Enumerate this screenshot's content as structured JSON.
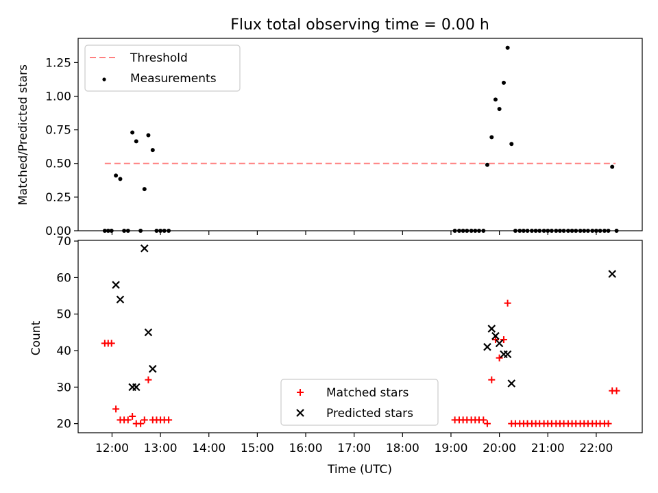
{
  "chart_data": [
    {
      "type": "scatter",
      "title": "Flux total observing time = 0.00 h",
      "xlabel": "",
      "ylabel": "Matched/Predicted stars",
      "xlim": [
        11.3,
        22.95
      ],
      "ylim": [
        0,
        1.43
      ],
      "yticks": [
        0.0,
        0.25,
        0.5,
        0.75,
        1.0,
        1.25
      ],
      "ytick_labels": [
        "0.00",
        "0.25",
        "0.50",
        "0.75",
        "1.00",
        "1.25"
      ],
      "legend_position": "upper-left",
      "threshold": {
        "name": "Threshold",
        "y": 0.5,
        "x": [
          11.85,
          22.4
        ],
        "color": "#ff8080",
        "style": "dashed"
      },
      "series": [
        {
          "name": "Measurements",
          "color": "#000000",
          "marker": "dot",
          "points": [
            [
              11.85,
              0.0
            ],
            [
              11.92,
              0.0
            ],
            [
              11.99,
              0.0
            ],
            [
              12.08,
              0.41
            ],
            [
              12.17,
              0.385
            ],
            [
              12.25,
              0.0
            ],
            [
              12.33,
              0.0
            ],
            [
              12.42,
              0.73
            ],
            [
              12.5,
              0.665
            ],
            [
              12.59,
              0.0
            ],
            [
              12.67,
              0.31
            ],
            [
              12.75,
              0.71
            ],
            [
              12.84,
              0.6
            ],
            [
              12.92,
              0.0
            ],
            [
              13.0,
              0.0
            ],
            [
              13.08,
              0.0
            ],
            [
              13.17,
              0.0
            ],
            [
              19.08,
              0.0
            ],
            [
              19.17,
              0.0
            ],
            [
              19.25,
              0.0
            ],
            [
              19.33,
              0.0
            ],
            [
              19.42,
              0.0
            ],
            [
              19.5,
              0.0
            ],
            [
              19.58,
              0.0
            ],
            [
              19.67,
              0.0
            ],
            [
              19.75,
              0.49
            ],
            [
              19.84,
              0.695
            ],
            [
              19.92,
              0.975
            ],
            [
              20.0,
              0.905
            ],
            [
              20.09,
              1.1
            ],
            [
              20.17,
              1.36
            ],
            [
              20.25,
              0.645
            ],
            [
              20.33,
              0.0
            ],
            [
              20.42,
              0.0
            ],
            [
              20.5,
              0.0
            ],
            [
              20.58,
              0.0
            ],
            [
              20.67,
              0.0
            ],
            [
              20.75,
              0.0
            ],
            [
              20.83,
              0.0
            ],
            [
              20.92,
              0.0
            ],
            [
              21.0,
              0.0
            ],
            [
              21.08,
              0.0
            ],
            [
              21.17,
              0.0
            ],
            [
              21.25,
              0.0
            ],
            [
              21.33,
              0.0
            ],
            [
              21.42,
              0.0
            ],
            [
              21.5,
              0.0
            ],
            [
              21.58,
              0.0
            ],
            [
              21.67,
              0.0
            ],
            [
              21.75,
              0.0
            ],
            [
              21.83,
              0.0
            ],
            [
              21.92,
              0.0
            ],
            [
              22.0,
              0.0
            ],
            [
              22.08,
              0.0
            ],
            [
              22.17,
              0.0
            ],
            [
              22.25,
              0.0
            ],
            [
              22.33,
              0.475
            ],
            [
              22.42,
              0.0
            ]
          ]
        }
      ]
    },
    {
      "type": "scatter",
      "title": "",
      "xlabel": "Time (UTC)",
      "ylabel": "Count",
      "xlim": [
        11.3,
        22.95
      ],
      "ylim": [
        17.5,
        70.2
      ],
      "xticks": [
        12,
        13,
        14,
        15,
        16,
        17,
        18,
        19,
        20,
        21,
        22
      ],
      "xtick_labels": [
        "12:00",
        "13:00",
        "14:00",
        "15:00",
        "16:00",
        "17:00",
        "18:00",
        "19:00",
        "20:00",
        "21:00",
        "22:00"
      ],
      "yticks": [
        20,
        30,
        40,
        50,
        60,
        70
      ],
      "ytick_labels": [
        "20",
        "30",
        "40",
        "50",
        "60",
        "70"
      ],
      "legend_position": "lower-center",
      "series": [
        {
          "name": "Matched stars",
          "color": "#ff0000",
          "marker": "plus",
          "points": [
            [
              11.85,
              42
            ],
            [
              11.92,
              42
            ],
            [
              11.99,
              42
            ],
            [
              12.08,
              24
            ],
            [
              12.17,
              21
            ],
            [
              12.25,
              21
            ],
            [
              12.33,
              21
            ],
            [
              12.42,
              22
            ],
            [
              12.5,
              20
            ],
            [
              12.59,
              20
            ],
            [
              12.67,
              21
            ],
            [
              12.75,
              32
            ],
            [
              12.84,
              21
            ],
            [
              12.92,
              21
            ],
            [
              13.0,
              21
            ],
            [
              13.08,
              21
            ],
            [
              13.17,
              21
            ],
            [
              19.08,
              21
            ],
            [
              19.17,
              21
            ],
            [
              19.25,
              21
            ],
            [
              19.33,
              21
            ],
            [
              19.42,
              21
            ],
            [
              19.5,
              21
            ],
            [
              19.58,
              21
            ],
            [
              19.67,
              21
            ],
            [
              19.75,
              20
            ],
            [
              19.84,
              32
            ],
            [
              19.92,
              43
            ],
            [
              20.0,
              38
            ],
            [
              20.09,
              43
            ],
            [
              20.17,
              53
            ],
            [
              20.25,
              20
            ],
            [
              20.33,
              20
            ],
            [
              20.42,
              20
            ],
            [
              20.5,
              20
            ],
            [
              20.58,
              20
            ],
            [
              20.67,
              20
            ],
            [
              20.75,
              20
            ],
            [
              20.83,
              20
            ],
            [
              20.92,
              20
            ],
            [
              21.0,
              20
            ],
            [
              21.08,
              20
            ],
            [
              21.17,
              20
            ],
            [
              21.25,
              20
            ],
            [
              21.33,
              20
            ],
            [
              21.42,
              20
            ],
            [
              21.5,
              20
            ],
            [
              21.58,
              20
            ],
            [
              21.67,
              20
            ],
            [
              21.75,
              20
            ],
            [
              21.83,
              20
            ],
            [
              21.92,
              20
            ],
            [
              22.0,
              20
            ],
            [
              22.08,
              20
            ],
            [
              22.17,
              20
            ],
            [
              22.25,
              20
            ],
            [
              22.33,
              29
            ],
            [
              22.42,
              29
            ]
          ]
        },
        {
          "name": "Predicted stars",
          "color": "#000000",
          "marker": "x",
          "points": [
            [
              12.08,
              58
            ],
            [
              12.17,
              54
            ],
            [
              12.42,
              30
            ],
            [
              12.5,
              30
            ],
            [
              12.67,
              68
            ],
            [
              12.75,
              45
            ],
            [
              12.84,
              35
            ],
            [
              19.75,
              41
            ],
            [
              19.84,
              46
            ],
            [
              19.92,
              44
            ],
            [
              20.0,
              42
            ],
            [
              20.09,
              39
            ],
            [
              20.17,
              39
            ],
            [
              20.25,
              31
            ],
            [
              22.33,
              61
            ]
          ]
        }
      ]
    }
  ]
}
